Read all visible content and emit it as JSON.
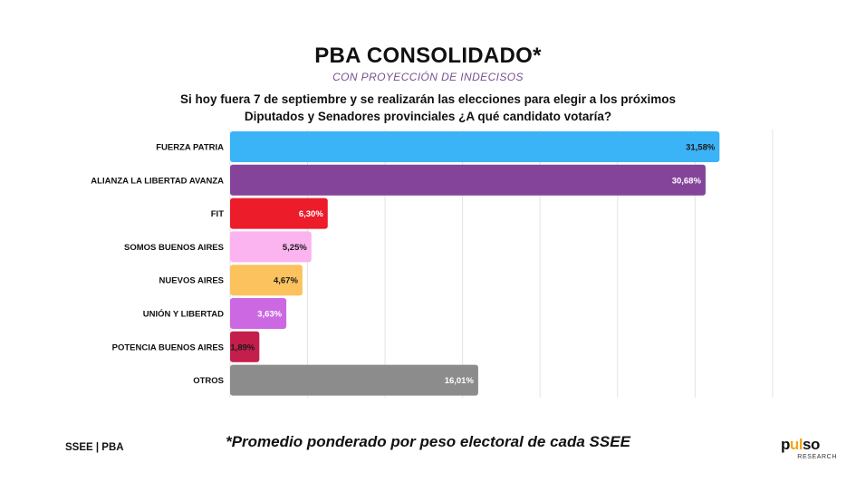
{
  "header": {
    "title": "PBA CONSOLIDADO*",
    "subtitle": "CON PROYECCIÓN DE INDECISOS",
    "question_line1": "Si hoy fuera 7 de septiembre y se realizarán las elecciones para elegir a los próximos",
    "question_line2": "Diputados y Senadores provinciales ¿A qué candidato votaría?"
  },
  "chart_data": {
    "type": "bar",
    "orientation": "horizontal",
    "title": "PBA CONSOLIDADO*",
    "xlabel": "",
    "ylabel": "",
    "xlim": [
      0,
      35
    ],
    "grid": true,
    "categories": [
      "FUERZA PATRIA",
      "ALIANZA LA LIBERTAD AVANZA",
      "FIT",
      "SOMOS BUENOS AIRES",
      "NUEVOS AIRES",
      "UNIÓN Y LIBERTAD",
      "POTENCIA BUENOS AIRES",
      "OTROS"
    ],
    "values": [
      31.58,
      30.68,
      6.3,
      5.25,
      4.67,
      3.63,
      1.89,
      16.01
    ],
    "value_labels": [
      "31,58%",
      "30,68%",
      "6,30%",
      "5,25%",
      "4,67%",
      "3,63%",
      "1,89%",
      "16,01%"
    ],
    "colors": [
      "#3bb3f7",
      "#84449a",
      "#ec1c2b",
      "#fbb4ef",
      "#fbc25d",
      "#cc68e2",
      "#c41f4c",
      "#8c8c8c"
    ],
    "label_colors": [
      "#1a1a1a",
      "#ffffff",
      "#ffffff",
      "#1a1a1a",
      "#1a1a1a",
      "#ffffff",
      "#1a1a1a",
      "#ffffff"
    ]
  },
  "footer": {
    "left": "SSEE | PBA",
    "note": "*Promedio ponderado por peso electoral de cada SSEE",
    "logo_text_1": "p",
    "logo_accent": "ul",
    "logo_text_2": "so",
    "logo_tag": "RESEARCH"
  }
}
